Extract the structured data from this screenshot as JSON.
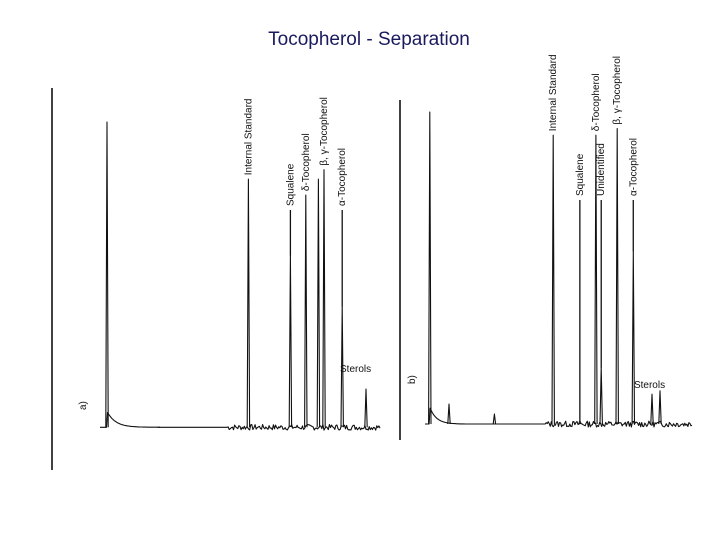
{
  "page": {
    "title": "Tocopherol - Separation"
  },
  "chart_data": [
    {
      "type": "line",
      "panel_label": "a)",
      "title": "",
      "xlabel": "",
      "ylabel": "",
      "baseline": 0.04,
      "noise_seed": 7,
      "peaks": [
        {
          "pos": 0.025,
          "height": 1.0,
          "width": 0.004,
          "tail": 0.03
        },
        {
          "pos": 0.21,
          "height": 0.04,
          "width": 0.003
        },
        {
          "pos": 0.53,
          "height": 0.82,
          "width": 0.003
        },
        {
          "pos": 0.68,
          "height": 0.58,
          "width": 0.003
        },
        {
          "pos": 0.735,
          "height": 0.77,
          "width": 0.003
        },
        {
          "pos": 0.78,
          "height": 0.82,
          "width": 0.003
        },
        {
          "pos": 0.8,
          "height": 0.85,
          "width": 0.003
        },
        {
          "pos": 0.865,
          "height": 0.42,
          "width": 0.003
        },
        {
          "pos": 0.95,
          "height": 0.16,
          "width": 0.003
        }
      ],
      "annotations": [
        {
          "text": "Internal Standard",
          "pos": 0.53
        },
        {
          "text": "Squalene",
          "pos": 0.68
        },
        {
          "text": "δ-Tocopherol",
          "pos": 0.735
        },
        {
          "text": "β, γ-Tocopherol",
          "pos": 0.8
        },
        {
          "text": "α-Tocopherol",
          "pos": 0.865
        },
        {
          "text": "Sterols",
          "pos": 0.95
        }
      ]
    },
    {
      "type": "line",
      "panel_label": "b)",
      "title": "",
      "xlabel": "",
      "ylabel": "",
      "baseline": 0.03,
      "noise_seed": 13,
      "peaks": [
        {
          "pos": 0.018,
          "height": 0.97,
          "width": 0.004,
          "tail": 0.025
        },
        {
          "pos": 0.09,
          "height": 0.09,
          "width": 0.003
        },
        {
          "pos": 0.26,
          "height": 0.06,
          "width": 0.003
        },
        {
          "pos": 0.48,
          "height": 0.9,
          "width": 0.003
        },
        {
          "pos": 0.58,
          "height": 0.04,
          "width": 0.003
        },
        {
          "pos": 0.64,
          "height": 0.9,
          "width": 0.003
        },
        {
          "pos": 0.66,
          "height": 0.2,
          "width": 0.003
        },
        {
          "pos": 0.72,
          "height": 0.92,
          "width": 0.003
        },
        {
          "pos": 0.78,
          "height": 0.55,
          "width": 0.003
        },
        {
          "pos": 0.85,
          "height": 0.12,
          "width": 0.003
        },
        {
          "pos": 0.88,
          "height": 0.13,
          "width": 0.003
        }
      ],
      "annotations": [
        {
          "text": "Internal Standard",
          "pos": 0.48
        },
        {
          "text": "Squalene",
          "pos": 0.58
        },
        {
          "text": "δ-Tocopherol",
          "pos": 0.64
        },
        {
          "text": "Unidentified",
          "pos": 0.66
        },
        {
          "text": "β, γ-Tocopherol",
          "pos": 0.72
        },
        {
          "text": "α-Tocopherol",
          "pos": 0.78
        },
        {
          "text": "Sterols",
          "pos": 0.88
        }
      ]
    }
  ]
}
